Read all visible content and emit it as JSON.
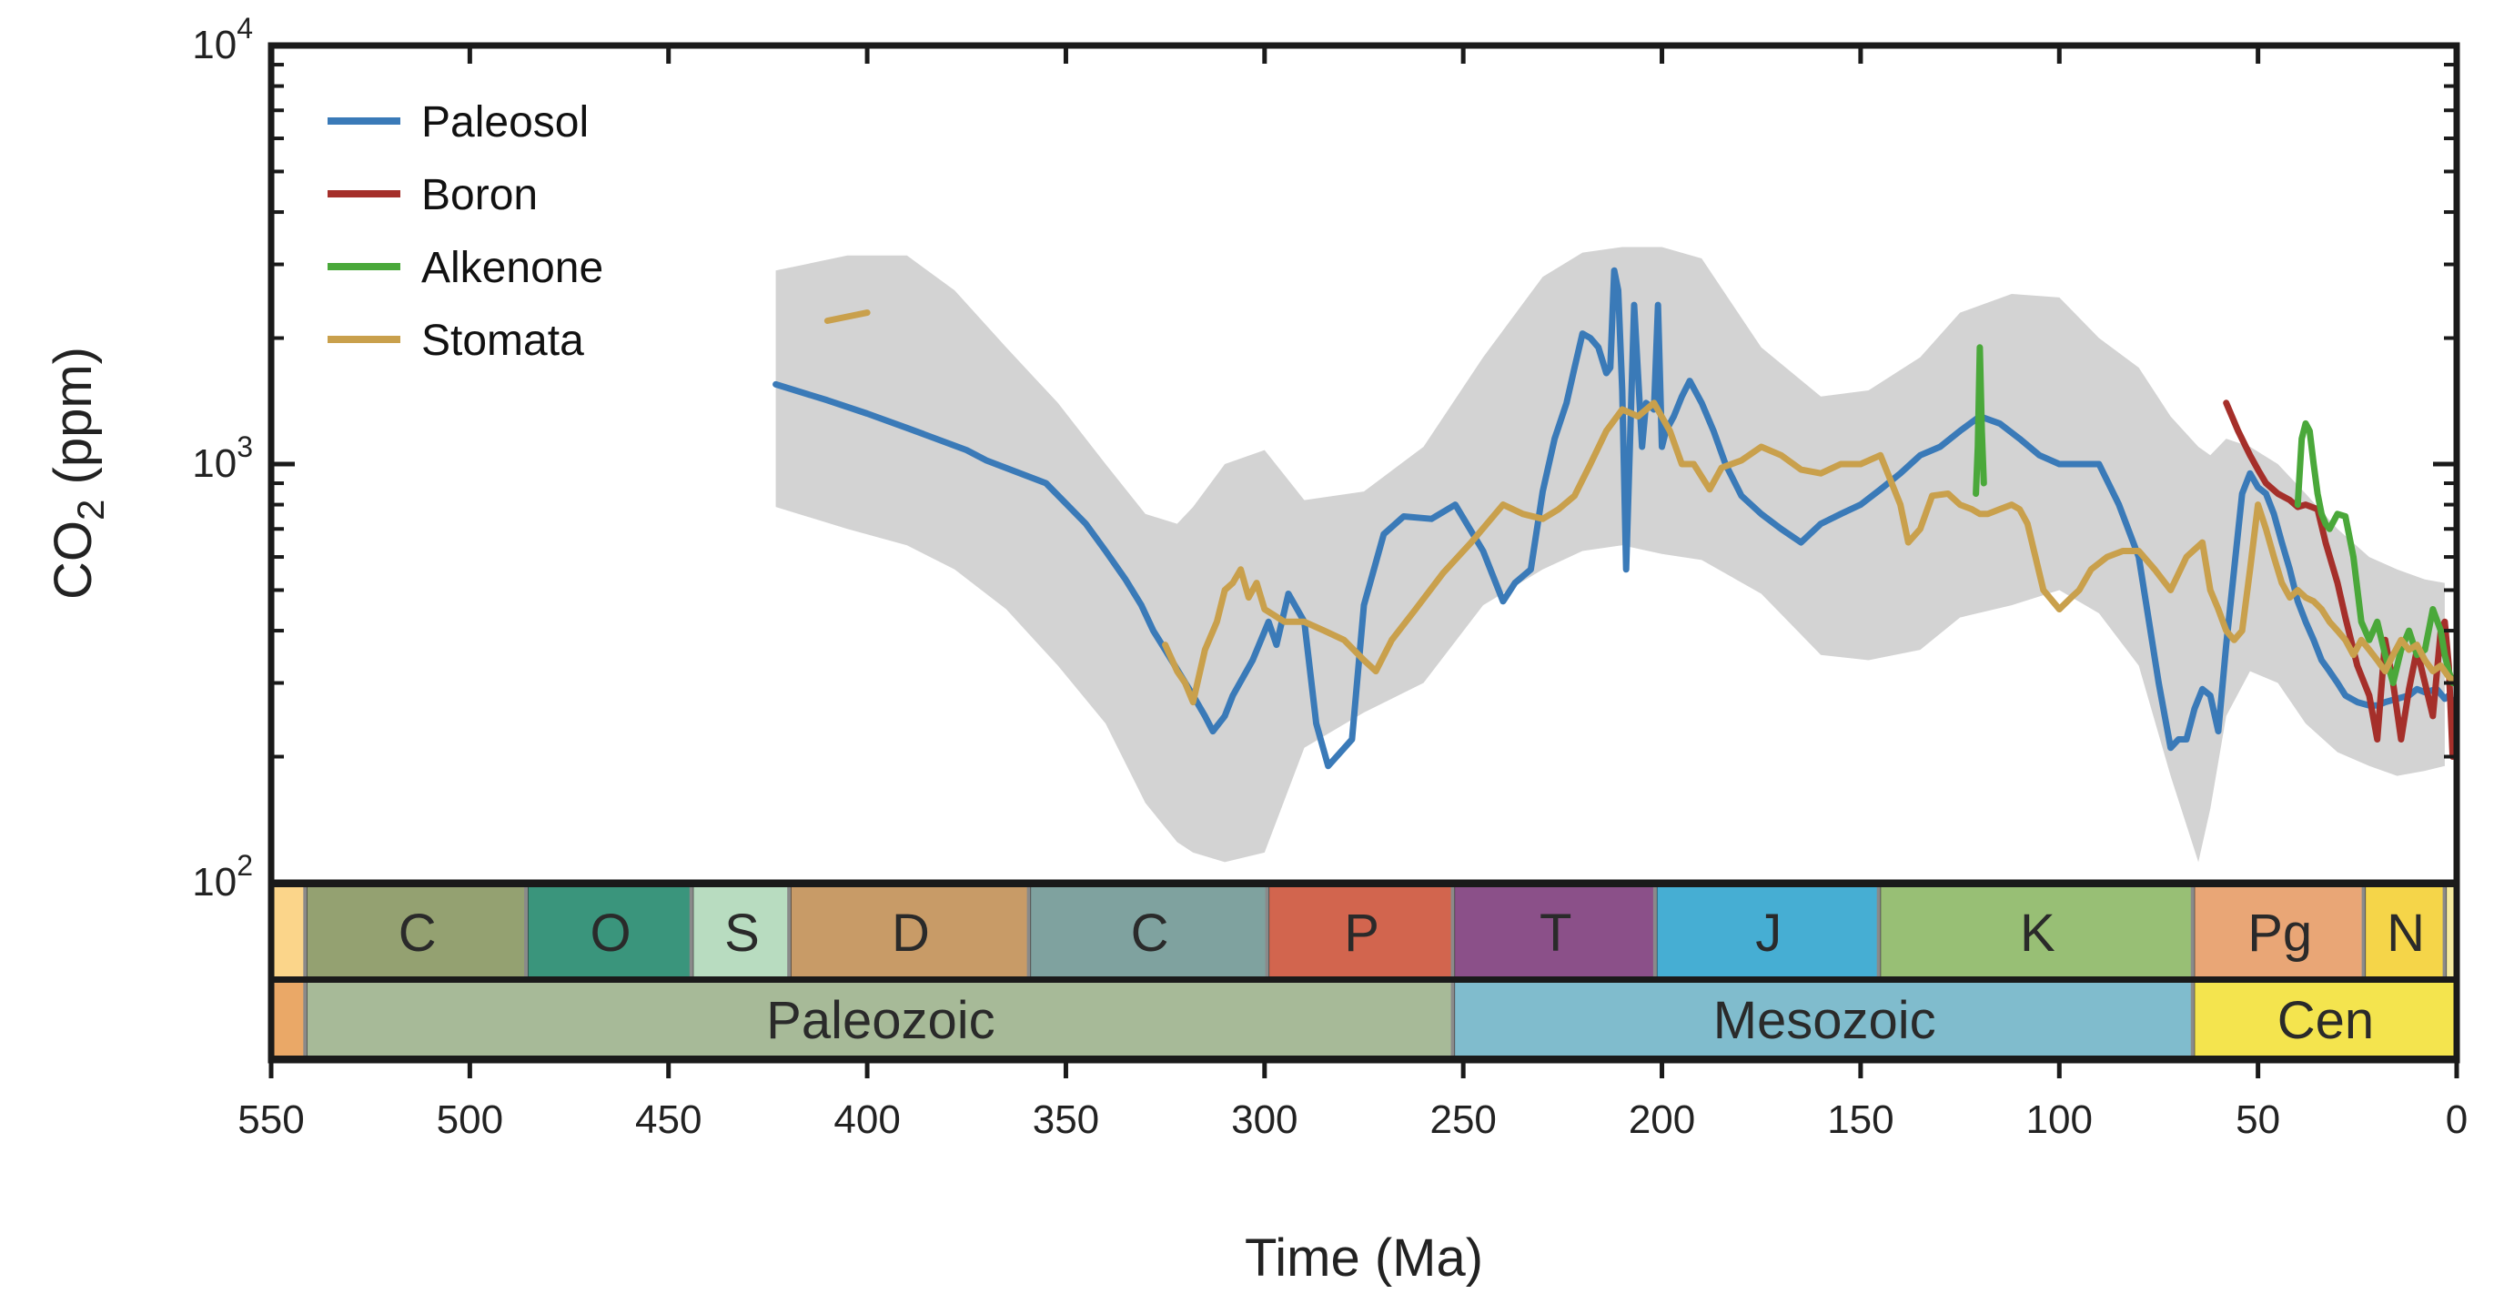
{
  "chart_data": {
    "type": "line",
    "xlabel": "Time (Ma)",
    "ylabel_main": "CO",
    "ylabel_sub": "2",
    "ylabel_unit": " (ppm)",
    "x_reversed": true,
    "xlim": [
      550,
      0
    ],
    "ylim": [
      100,
      10000
    ],
    "y_scale": "log",
    "x_ticks": [
      550,
      500,
      450,
      400,
      350,
      300,
      250,
      200,
      150,
      100,
      50,
      0
    ],
    "y_ticks": [
      {
        "value": 100,
        "base": "10",
        "exp": "2"
      },
      {
        "value": 1000,
        "base": "10",
        "exp": "3"
      },
      {
        "value": 10000,
        "base": "10",
        "exp": "4"
      }
    ],
    "legend_position": "top-left",
    "band_color": "#d3d3d3",
    "band": {
      "x": [
        423,
        405,
        390,
        378,
        365,
        352,
        340,
        330,
        322,
        318,
        310,
        300,
        290,
        275,
        260,
        245,
        230,
        220,
        210,
        200,
        190,
        175,
        160,
        148,
        135,
        125,
        112,
        100,
        90,
        80,
        72,
        65,
        62,
        58,
        52,
        45,
        38,
        30,
        22,
        15,
        8,
        3
      ],
      "upper": [
        2900,
        3150,
        3150,
        2600,
        1900,
        1400,
        1000,
        760,
        720,
        790,
        1000,
        1080,
        820,
        860,
        1100,
        1800,
        2800,
        3200,
        3300,
        3300,
        3100,
        1900,
        1450,
        1500,
        1800,
        2300,
        2550,
        2500,
        2000,
        1700,
        1300,
        1100,
        1050,
        1150,
        1100,
        1000,
        850,
        700,
        600,
        560,
        530,
        520
      ],
      "lower": [
        790,
        700,
        640,
        560,
        450,
        330,
        240,
        155,
        125,
        118,
        112,
        118,
        210,
        255,
        300,
        460,
        560,
        620,
        640,
        610,
        590,
        490,
        350,
        340,
        360,
        430,
        460,
        500,
        440,
        330,
        180,
        112,
        150,
        250,
        320,
        300,
        240,
        205,
        190,
        180,
        185,
        190
      ]
    },
    "series": [
      {
        "name": "Paleosol",
        "color": "#3a7ab8",
        "x": [
          423,
          410,
          400,
          390,
          375,
          370,
          355,
          345,
          340,
          335,
          331,
          328,
          325,
          318,
          315,
          313,
          310,
          308,
          303,
          299,
          297,
          294,
          290,
          287,
          284,
          278,
          275,
          270,
          265,
          258,
          252,
          245,
          240,
          237,
          233,
          230,
          227,
          224,
          222,
          220,
          218,
          216,
          214,
          213,
          212,
          211,
          210,
          209,
          207,
          205,
          204,
          202,
          201,
          200,
          199,
          197,
          195,
          193,
          190,
          187,
          184,
          180,
          175,
          170,
          165,
          160,
          155,
          150,
          145,
          140,
          135,
          130,
          125,
          120,
          115,
          110,
          105,
          100,
          95,
          90,
          85,
          80,
          75,
          72,
          70,
          68,
          66,
          64,
          62,
          60,
          58,
          56,
          54,
          52,
          50,
          48,
          46,
          44,
          42,
          40,
          38,
          36,
          34,
          32,
          30,
          28,
          25,
          22,
          20,
          18,
          15,
          12,
          10,
          8,
          5,
          3,
          2,
          1
        ],
        "y": [
          1550,
          1420,
          1320,
          1220,
          1080,
          1020,
          900,
          720,
          620,
          530,
          460,
          400,
          360,
          280,
          250,
          230,
          250,
          280,
          340,
          420,
          370,
          490,
          420,
          240,
          190,
          220,
          460,
          680,
          750,
          740,
          800,
          620,
          470,
          520,
          560,
          860,
          1150,
          1400,
          1700,
          2050,
          2000,
          1900,
          1650,
          1700,
          2900,
          2600,
          1500,
          560,
          2400,
          1100,
          1400,
          1350,
          2400,
          1100,
          1200,
          1300,
          1450,
          1580,
          1400,
          1200,
          1000,
          840,
          760,
          700,
          650,
          720,
          760,
          800,
          870,
          950,
          1050,
          1100,
          1200,
          1300,
          1250,
          1150,
          1050,
          1000,
          1000,
          1000,
          800,
          600,
          300,
          210,
          220,
          220,
          260,
          290,
          280,
          230,
          370,
          560,
          850,
          950,
          880,
          850,
          760,
          650,
          560,
          470,
          420,
          380,
          340,
          320,
          300,
          280,
          270,
          265,
          265,
          270,
          275,
          280,
          290,
          285,
          290,
          275,
          280,
          270
        ]
      },
      {
        "name": "Boron",
        "color": "#a52f2a",
        "x": [
          58,
          55,
          52,
          50,
          48,
          45,
          42,
          40,
          38,
          35,
          33,
          30,
          28,
          25,
          22,
          20,
          18,
          16,
          14,
          12,
          10,
          8,
          6,
          4,
          3,
          2,
          1,
          0
        ],
        "y": [
          1400,
          1200,
          1050,
          970,
          900,
          850,
          820,
          790,
          800,
          780,
          650,
          520,
          430,
          330,
          280,
          220,
          380,
          300,
          220,
          290,
          360,
          300,
          250,
          400,
          420,
          330,
          200,
          250
        ]
      },
      {
        "name": "Alkenone",
        "color": "#4aa83a",
        "x": [
          121,
          120.5,
          120,
          119.5,
          119,
          null,
          40,
          39,
          38,
          37,
          36,
          35,
          34,
          33,
          32,
          30,
          28,
          26,
          24,
          22,
          20,
          18,
          16,
          14,
          12,
          10,
          8,
          6,
          4,
          3,
          2,
          1,
          0
        ],
        "y": [
          850,
          1100,
          1900,
          1200,
          900,
          null,
          800,
          1150,
          1250,
          1200,
          1000,
          850,
          760,
          720,
          700,
          760,
          750,
          600,
          420,
          380,
          420,
          350,
          300,
          360,
          400,
          350,
          360,
          450,
          400,
          350,
          320,
          300,
          300
        ]
      },
      {
        "name": "Stomata",
        "color": "#c9a04c",
        "x": [
          410,
          400,
          null,
          325,
          322,
          320,
          318,
          315,
          312,
          310,
          308,
          306,
          304,
          302,
          300,
          295,
          290,
          285,
          280,
          275,
          272,
          268,
          262,
          255,
          248,
          240,
          235,
          230,
          226,
          222,
          218,
          214,
          210,
          206,
          202,
          198,
          195,
          192,
          188,
          185,
          180,
          175,
          170,
          165,
          160,
          155,
          150,
          145,
          140,
          138,
          135,
          132,
          128,
          125,
          122,
          120,
          118,
          115,
          112,
          110,
          108,
          104,
          100,
          97,
          95,
          92,
          88,
          84,
          80,
          76,
          72,
          68,
          64,
          62,
          60,
          58,
          56,
          54,
          52,
          50,
          48,
          46,
          44,
          42,
          40,
          38,
          36,
          34,
          32,
          30,
          28,
          26,
          24,
          22,
          20,
          18,
          16,
          14,
          12,
          10,
          8,
          6,
          4,
          2,
          0
        ],
        "y": [
          2200,
          2300,
          null,
          370,
          320,
          300,
          270,
          360,
          420,
          500,
          520,
          560,
          480,
          520,
          450,
          420,
          420,
          400,
          380,
          340,
          320,
          380,
          450,
          550,
          650,
          800,
          760,
          740,
          780,
          840,
          1000,
          1200,
          1350,
          1300,
          1400,
          1200,
          1000,
          1000,
          870,
          980,
          1020,
          1100,
          1050,
          970,
          950,
          1000,
          1000,
          1050,
          800,
          650,
          700,
          840,
          850,
          800,
          780,
          760,
          760,
          780,
          800,
          780,
          720,
          500,
          450,
          480,
          500,
          560,
          600,
          620,
          620,
          560,
          500,
          600,
          650,
          500,
          450,
          400,
          380,
          400,
          560,
          800,
          700,
          600,
          520,
          480,
          500,
          480,
          470,
          450,
          420,
          400,
          380,
          350,
          380,
          360,
          340,
          320,
          350,
          380,
          360,
          370,
          340,
          320,
          330,
          310,
          300
        ]
      }
    ],
    "timescale": {
      "periods": [
        {
          "label": "",
          "start": 550,
          "end": 541,
          "color": "#fbd58a"
        },
        {
          "label": "C",
          "start": 541,
          "end": 485.4,
          "color": "#94a171"
        },
        {
          "label": "O",
          "start": 485.4,
          "end": 443.8,
          "color": "#3a957c"
        },
        {
          "label": "S",
          "start": 443.8,
          "end": 419.2,
          "color": "#b8dcc0"
        },
        {
          "label": "D",
          "start": 419.2,
          "end": 358.9,
          "color": "#c89b67"
        },
        {
          "label": "C",
          "start": 358.9,
          "end": 298.9,
          "color": "#7fa29f"
        },
        {
          "label": "P",
          "start": 298.9,
          "end": 252.2,
          "color": "#d2654e"
        },
        {
          "label": "T",
          "start": 252.2,
          "end": 201.3,
          "color": "#8b5089"
        },
        {
          "label": "J",
          "start": 201.3,
          "end": 145,
          "color": "#46aed3"
        },
        {
          "label": "K",
          "start": 145,
          "end": 66,
          "color": "#98bf75"
        },
        {
          "label": "Pg",
          "start": 66,
          "end": 23,
          "color": "#e9a676"
        },
        {
          "label": "N",
          "start": 23,
          "end": 2.6,
          "color": "#f5d549"
        },
        {
          "label": "",
          "start": 2.6,
          "end": 0,
          "color": "#f5ea9e"
        }
      ],
      "eras": [
        {
          "label": "",
          "start": 550,
          "end": 541,
          "color": "#eaa867"
        },
        {
          "label": "Paleozoic",
          "start": 541,
          "end": 252.2,
          "color": "#a7ba98"
        },
        {
          "label": "Mesozoic",
          "start": 252.2,
          "end": 66,
          "color": "#80bccd"
        },
        {
          "label": "Cen",
          "start": 66,
          "end": 0,
          "color": "#f4e44e"
        }
      ]
    }
  }
}
